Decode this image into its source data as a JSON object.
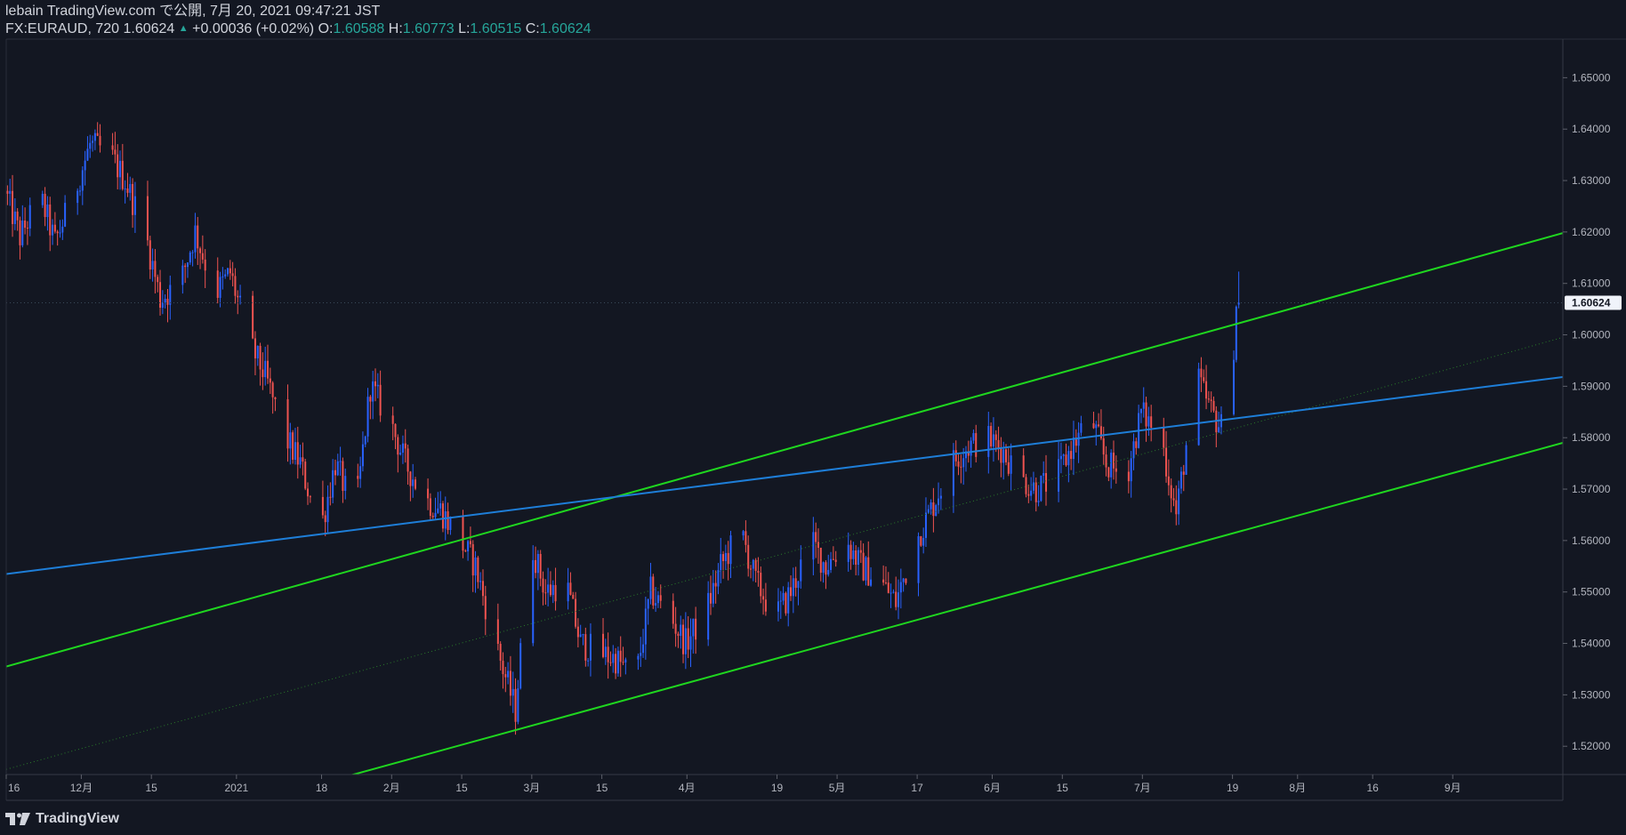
{
  "header": {
    "line1": "lebain TradingView.com で公開, 7月 20, 2021 09:47:21 JST",
    "symbol": "FX:EURAUD, 720 1.60624",
    "change_arrow": "▲",
    "change": "+0.00036 (+0.02%)",
    "o_label": "O:",
    "o_val": "1.60588",
    "h_label": "H:",
    "h_val": "1.60773",
    "l_label": "L:",
    "l_val": "1.60515",
    "c_label": "C:",
    "c_val": "1.60624"
  },
  "footer": {
    "brand": "TradingView"
  },
  "colors": {
    "background": "#131722",
    "up": "#2962ff",
    "down": "#ef5350",
    "trend_green": "#1fd61f",
    "trend_blue": "#1e7ed8",
    "text": "#d1d4dc"
  },
  "chart_data": {
    "type": "candlestick",
    "title": "FX:EURAUD, 720",
    "ylim": [
      1.5145,
      1.6575
    ],
    "y_ticks": [
      "1.52000",
      "1.53000",
      "1.54000",
      "1.55000",
      "1.56000",
      "1.57000",
      "1.58000",
      "1.59000",
      "1.60000",
      "1.61000",
      "1.62000",
      "1.63000",
      "1.64000",
      "1.65000"
    ],
    "last_price_label": "1.60624",
    "x_start": "2020-11-16",
    "x_end": "2021-09-23",
    "x_ticks": [
      {
        "label": "16",
        "date": "2020-11-16"
      },
      {
        "label": "12月",
        "date": "2020-12-01"
      },
      {
        "label": "15",
        "date": "2020-12-15"
      },
      {
        "label": "2021",
        "date": "2021-01-01"
      },
      {
        "label": "18",
        "date": "2021-01-18"
      },
      {
        "label": "2月",
        "date": "2021-02-01"
      },
      {
        "label": "15",
        "date": "2021-02-15"
      },
      {
        "label": "3月",
        "date": "2021-03-01"
      },
      {
        "label": "15",
        "date": "2021-03-15"
      },
      {
        "label": "4月",
        "date": "2021-04-01"
      },
      {
        "label": "19",
        "date": "2021-04-19"
      },
      {
        "label": "5月",
        "date": "2021-05-01"
      },
      {
        "label": "17",
        "date": "2021-05-17"
      },
      {
        "label": "6月",
        "date": "2021-06-01"
      },
      {
        "label": "15",
        "date": "2021-06-15"
      },
      {
        "label": "7月",
        "date": "2021-07-01"
      },
      {
        "label": "19",
        "date": "2021-07-19"
      },
      {
        "label": "8月",
        "date": "2021-08-01"
      },
      {
        "label": "16",
        "date": "2021-08-16"
      },
      {
        "label": "9月",
        "date": "2021-09-01"
      }
    ],
    "price_path": [
      [
        "2020-11-16",
        1.628
      ],
      [
        "2020-11-19",
        1.619
      ],
      [
        "2020-11-23",
        1.627
      ],
      [
        "2020-11-26",
        1.618
      ],
      [
        "2020-11-30",
        1.628
      ],
      [
        "2020-12-03",
        1.637
      ],
      [
        "2020-12-07",
        1.635
      ],
      [
        "2020-12-10",
        1.63
      ],
      [
        "2020-12-14",
        1.62
      ],
      [
        "2020-12-17",
        1.607
      ],
      [
        "2020-12-21",
        1.61
      ],
      [
        "2020-12-24",
        1.62
      ],
      [
        "2020-12-28",
        1.608
      ],
      [
        "2020-12-31",
        1.612
      ],
      [
        "2021-01-04",
        1.598
      ],
      [
        "2021-01-07",
        1.592
      ],
      [
        "2021-01-11",
        1.58
      ],
      [
        "2021-01-14",
        1.575
      ],
      [
        "2021-01-18",
        1.562
      ],
      [
        "2021-01-21",
        1.575
      ],
      [
        "2021-01-25",
        1.565
      ],
      [
        "2021-01-28",
        1.59
      ],
      [
        "2021-02-01",
        1.583
      ],
      [
        "2021-02-04",
        1.575
      ],
      [
        "2021-02-08",
        1.568
      ],
      [
        "2021-02-11",
        1.566
      ],
      [
        "2021-02-15",
        1.56
      ],
      [
        "2021-02-18",
        1.555
      ],
      [
        "2021-02-22",
        1.54
      ],
      [
        "2021-02-26",
        1.527
      ],
      [
        "2021-03-01",
        1.56
      ],
      [
        "2021-03-04",
        1.55
      ],
      [
        "2021-03-08",
        1.552
      ],
      [
        "2021-03-11",
        1.54
      ],
      [
        "2021-03-15",
        1.538
      ],
      [
        "2021-03-18",
        1.537
      ],
      [
        "2021-03-22",
        1.533
      ],
      [
        "2021-03-25",
        1.55
      ],
      [
        "2021-03-29",
        1.545
      ],
      [
        "2021-04-01",
        1.54
      ],
      [
        "2021-04-05",
        1.546
      ],
      [
        "2021-04-08",
        1.555
      ],
      [
        "2021-04-12",
        1.562
      ],
      [
        "2021-04-15",
        1.552
      ],
      [
        "2021-04-19",
        1.545
      ],
      [
        "2021-04-22",
        1.55
      ],
      [
        "2021-04-26",
        1.56
      ],
      [
        "2021-04-29",
        1.555
      ],
      [
        "2021-05-03",
        1.56
      ],
      [
        "2021-05-06",
        1.555
      ],
      [
        "2021-05-10",
        1.552
      ],
      [
        "2021-05-13",
        1.548
      ],
      [
        "2021-05-17",
        1.56
      ],
      [
        "2021-05-20",
        1.566
      ],
      [
        "2021-05-24",
        1.575
      ],
      [
        "2021-05-27",
        1.578
      ],
      [
        "2021-05-31",
        1.58
      ],
      [
        "2021-06-03",
        1.578
      ],
      [
        "2021-06-07",
        1.572
      ],
      [
        "2021-06-10",
        1.57
      ],
      [
        "2021-06-14",
        1.572
      ],
      [
        "2021-06-17",
        1.578
      ],
      [
        "2021-06-21",
        1.584
      ],
      [
        "2021-06-24",
        1.575
      ],
      [
        "2021-06-28",
        1.572
      ],
      [
        "2021-07-01",
        1.585
      ],
      [
        "2021-07-05",
        1.58
      ],
      [
        "2021-07-08",
        1.565
      ],
      [
        "2021-07-12",
        1.592
      ],
      [
        "2021-07-15",
        1.585
      ],
      [
        "2021-07-17",
        1.582
      ],
      [
        "2021-07-19",
        1.59
      ],
      [
        "2021-07-20",
        1.60624
      ]
    ],
    "trend_lines": [
      {
        "color": "#1fd61f",
        "width": 2,
        "style": "solid",
        "from": [
          "2020-11-16",
          1.5355
        ],
        "to": [
          "2021-09-23",
          1.6198
        ]
      },
      {
        "color": "#1fd61f",
        "width": 2,
        "style": "solid",
        "from": [
          "2021-01-21",
          1.5136
        ],
        "to": [
          "2021-09-23",
          1.579
        ]
      },
      {
        "color": "#2a7b2a",
        "width": 1,
        "style": "dotted",
        "from": [
          "2020-11-16",
          1.5155
        ],
        "to": [
          "2021-09-23",
          1.5995
        ]
      },
      {
        "color": "#1e7ed8",
        "width": 2,
        "style": "solid",
        "from": [
          "2020-11-16",
          1.5535
        ],
        "to": [
          "2021-09-23",
          1.5918
        ]
      }
    ]
  }
}
